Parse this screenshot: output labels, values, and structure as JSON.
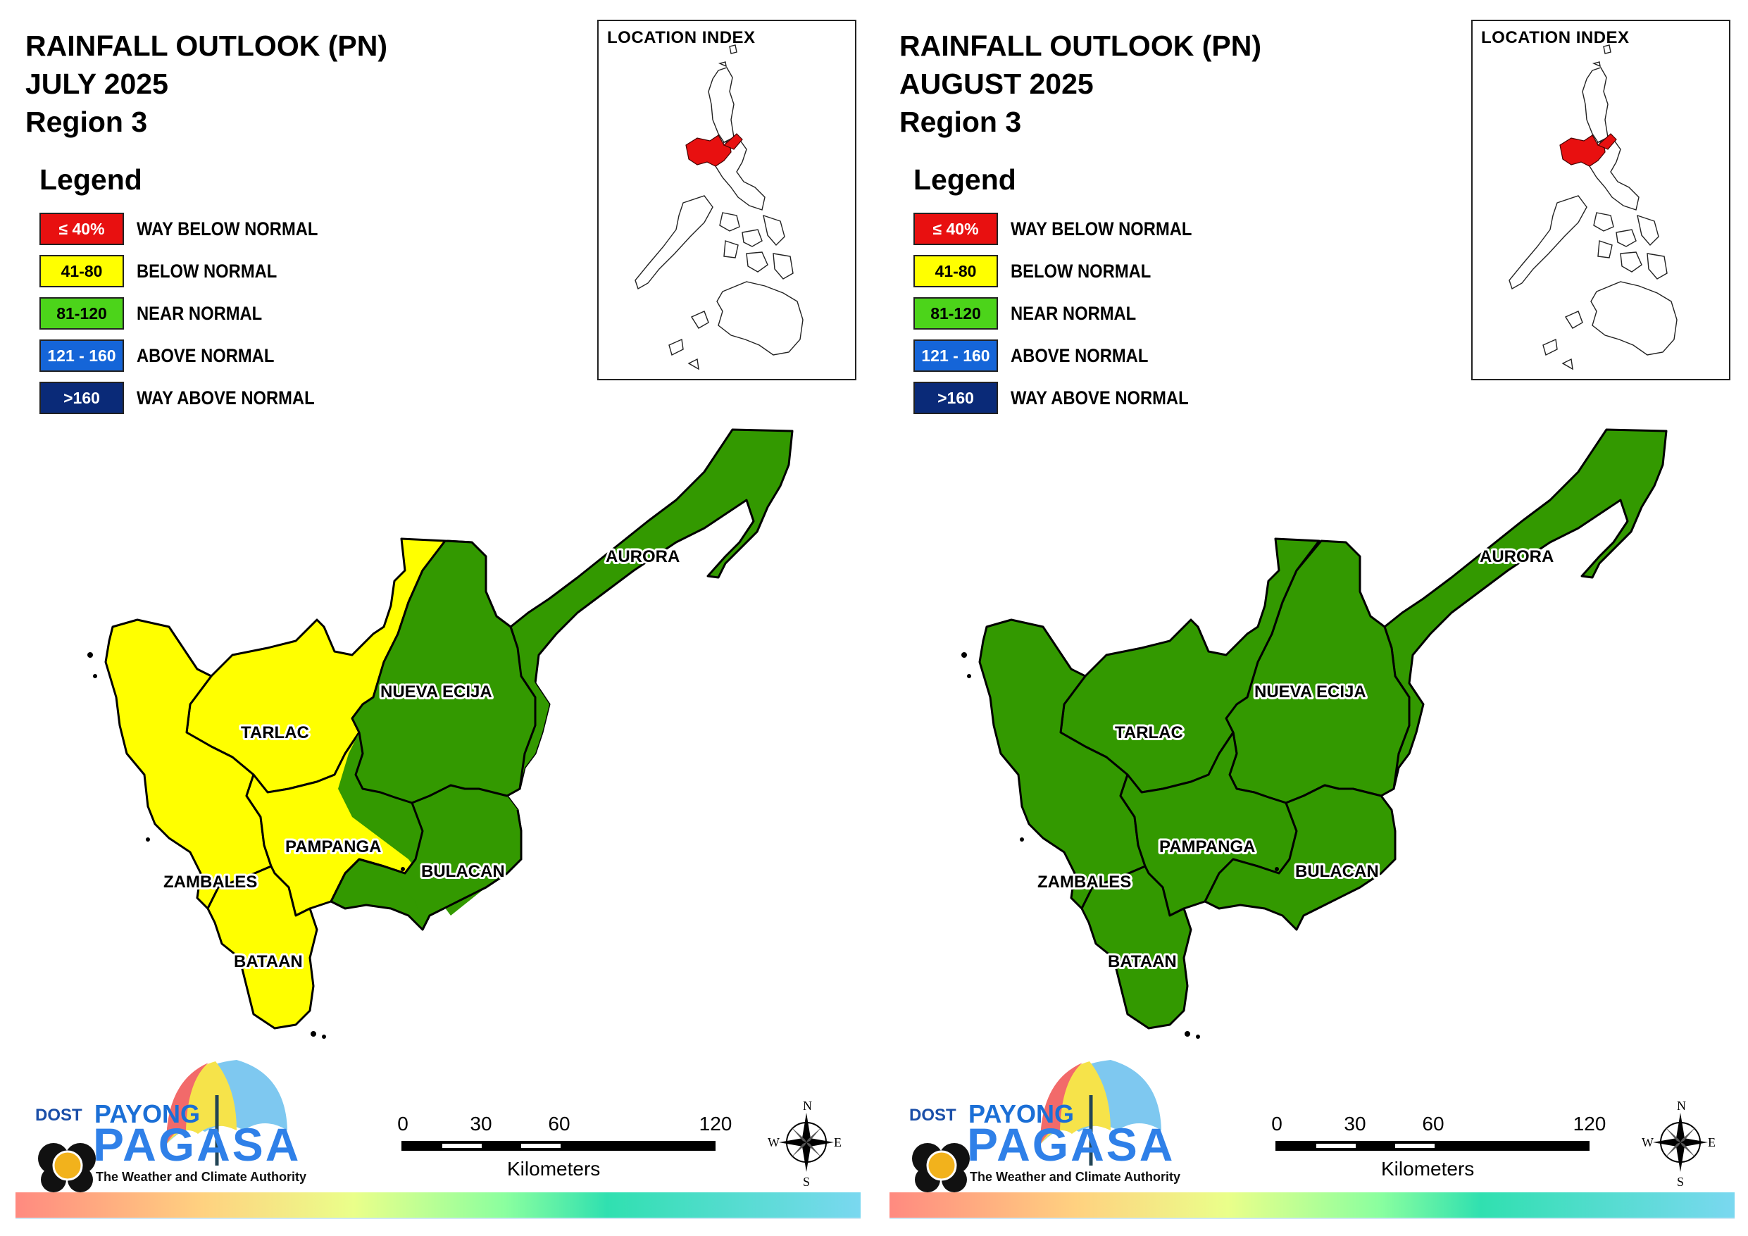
{
  "panels": [
    {
      "title_line1": "RAINFALL OUTLOOK (PN)",
      "title_line2": "JULY 2025",
      "title_line3": "Region 3"
    },
    {
      "title_line1": "RAINFALL OUTLOOK (PN)",
      "title_line2": "AUGUST 2025",
      "title_line3": "Region 3"
    }
  ],
  "legend": {
    "title": "Legend",
    "items": [
      {
        "range": "≤ 40%",
        "label": "WAY BELOW NORMAL",
        "color": "#e81010",
        "text_color": "#ffffff"
      },
      {
        "range": "41-80",
        "label": "BELOW NORMAL",
        "color": "#ffff00",
        "text_color": "#000000"
      },
      {
        "range": "81-120",
        "label": "NEAR NORMAL",
        "color": "#4cd41a",
        "text_color": "#000000"
      },
      {
        "range": "121 - 160",
        "label": "ABOVE NORMAL",
        "color": "#1565d8",
        "text_color": "#ffffff"
      },
      {
        "range": ">160",
        "label": "WAY ABOVE NORMAL",
        "color": "#0a2a78",
        "text_color": "#ffffff"
      }
    ]
  },
  "inset": {
    "title": "LOCATION INDEX",
    "highlight_color": "#e81010"
  },
  "provinces": {
    "aurora": "AURORA",
    "nueva_ecija": "NUEVA ECIJA",
    "tarlac": "TARLAC",
    "pampanga": "PAMPANGA",
    "zambales": "ZAMBALES",
    "bulacan": "BULACAN",
    "bataan": "BATAAN"
  },
  "map_colors": {
    "below_normal": "#ffff00",
    "near_normal": "#339900"
  },
  "map_classes": {
    "july": {
      "AURORA": "near_normal",
      "NUEVA ECIJA": "near_normal",
      "BULACAN": "near_normal",
      "TARLAC": "below_normal",
      "ZAMBALES": "below_normal",
      "BATAAN": "below_normal",
      "PAMPANGA": "mostly below_normal, east near_normal"
    },
    "august": {
      "AURORA": "near_normal",
      "NUEVA ECIJA": "near_normal",
      "BULACAN": "near_normal",
      "TARLAC": "near_normal",
      "ZAMBALES": "near_normal",
      "BATAAN": "near_normal",
      "PAMPANGA": "near_normal"
    }
  },
  "branding": {
    "dost": "DOST",
    "payong": "PAYONG",
    "pagasa": "PAGASA",
    "tagline": "The Weather and Climate Authority"
  },
  "scale": {
    "ticks": [
      "0",
      "30",
      "60",
      "120"
    ],
    "tick_km": [
      0,
      30,
      60,
      120
    ],
    "unit": "Kilometers"
  },
  "compass": {
    "n": "N",
    "e": "E",
    "s": "S",
    "w": "W"
  }
}
